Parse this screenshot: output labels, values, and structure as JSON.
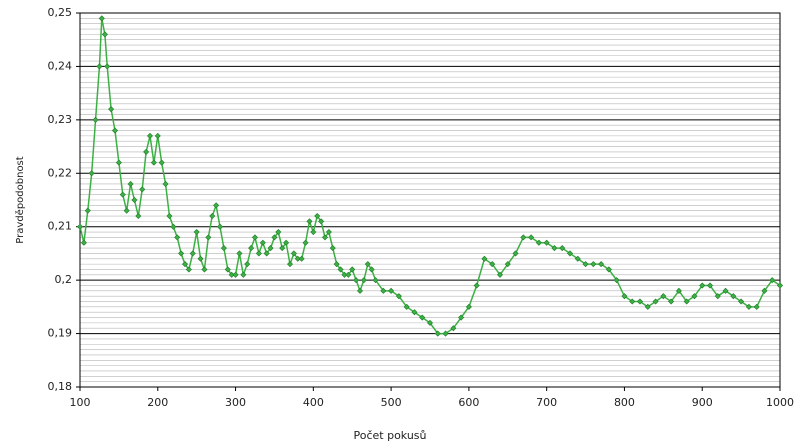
{
  "chart_data": {
    "type": "line",
    "x_label": "Počet pokusů",
    "y_label": "Pravděpodobnost",
    "x": [
      100,
      105,
      110,
      115,
      120,
      125,
      128,
      132,
      135,
      140,
      145,
      150,
      155,
      160,
      165,
      170,
      175,
      180,
      185,
      190,
      195,
      200,
      205,
      210,
      215,
      220,
      225,
      230,
      235,
      240,
      245,
      250,
      255,
      260,
      265,
      270,
      275,
      280,
      285,
      290,
      295,
      300,
      305,
      310,
      315,
      320,
      325,
      330,
      335,
      340,
      345,
      350,
      355,
      360,
      365,
      370,
      375,
      380,
      385,
      390,
      395,
      400,
      405,
      410,
      415,
      420,
      425,
      430,
      435,
      440,
      445,
      450,
      455,
      460,
      465,
      470,
      475,
      480,
      490,
      500,
      510,
      520,
      530,
      540,
      550,
      560,
      570,
      580,
      590,
      600,
      610,
      620,
      630,
      640,
      650,
      660,
      670,
      680,
      690,
      700,
      710,
      720,
      730,
      740,
      750,
      760,
      770,
      780,
      790,
      800,
      810,
      820,
      830,
      840,
      850,
      860,
      870,
      880,
      890,
      900,
      910,
      920,
      930,
      940,
      950,
      960,
      970,
      980,
      990,
      1000
    ],
    "series": [
      {
        "name": "Pravděpodobnost",
        "color": "#3cb043",
        "values": [
          0.21,
          0.207,
          0.213,
          0.22,
          0.23,
          0.24,
          0.249,
          0.246,
          0.24,
          0.232,
          0.228,
          0.222,
          0.216,
          0.213,
          0.218,
          0.215,
          0.212,
          0.217,
          0.224,
          0.227,
          0.222,
          0.227,
          0.222,
          0.218,
          0.212,
          0.21,
          0.208,
          0.205,
          0.203,
          0.202,
          0.205,
          0.209,
          0.204,
          0.202,
          0.208,
          0.212,
          0.214,
          0.21,
          0.206,
          0.202,
          0.201,
          0.201,
          0.205,
          0.201,
          0.203,
          0.206,
          0.208,
          0.205,
          0.207,
          0.205,
          0.206,
          0.208,
          0.209,
          0.206,
          0.207,
          0.203,
          0.205,
          0.204,
          0.204,
          0.207,
          0.211,
          0.209,
          0.212,
          0.211,
          0.208,
          0.209,
          0.206,
          0.203,
          0.202,
          0.201,
          0.201,
          0.202,
          0.2,
          0.198,
          0.2,
          0.203,
          0.202,
          0.2,
          0.198,
          0.198,
          0.197,
          0.195,
          0.194,
          0.193,
          0.192,
          0.19,
          0.19,
          0.191,
          0.193,
          0.195,
          0.199,
          0.204,
          0.203,
          0.201,
          0.203,
          0.205,
          0.208,
          0.208,
          0.207,
          0.207,
          0.206,
          0.206,
          0.205,
          0.204,
          0.203,
          0.203,
          0.203,
          0.202,
          0.2,
          0.197,
          0.196,
          0.196,
          0.195,
          0.196,
          0.197,
          0.196,
          0.198,
          0.196,
          0.197,
          0.199,
          0.199,
          0.197,
          0.198,
          0.197,
          0.196,
          0.195,
          0.195,
          0.198,
          0.2,
          0.199
        ]
      }
    ],
    "xlim": [
      100,
      1000
    ],
    "xticks": [
      100,
      200,
      300,
      400,
      500,
      600,
      700,
      800,
      900,
      1000
    ],
    "ylim": [
      0.18,
      0.25
    ],
    "yticks": [
      {
        "value": 0.18,
        "label": "0,18"
      },
      {
        "value": 0.19,
        "label": "0,19"
      },
      {
        "value": 0.2,
        "label": "0,2"
      },
      {
        "value": 0.21,
        "label": "0,21"
      },
      {
        "value": 0.22,
        "label": "0,22"
      },
      {
        "value": 0.23,
        "label": "0,23"
      },
      {
        "value": 0.24,
        "label": "0,24"
      },
      {
        "value": 0.25,
        "label": "0,25"
      }
    ],
    "grid": true,
    "minor_grid": true,
    "legend": false
  }
}
